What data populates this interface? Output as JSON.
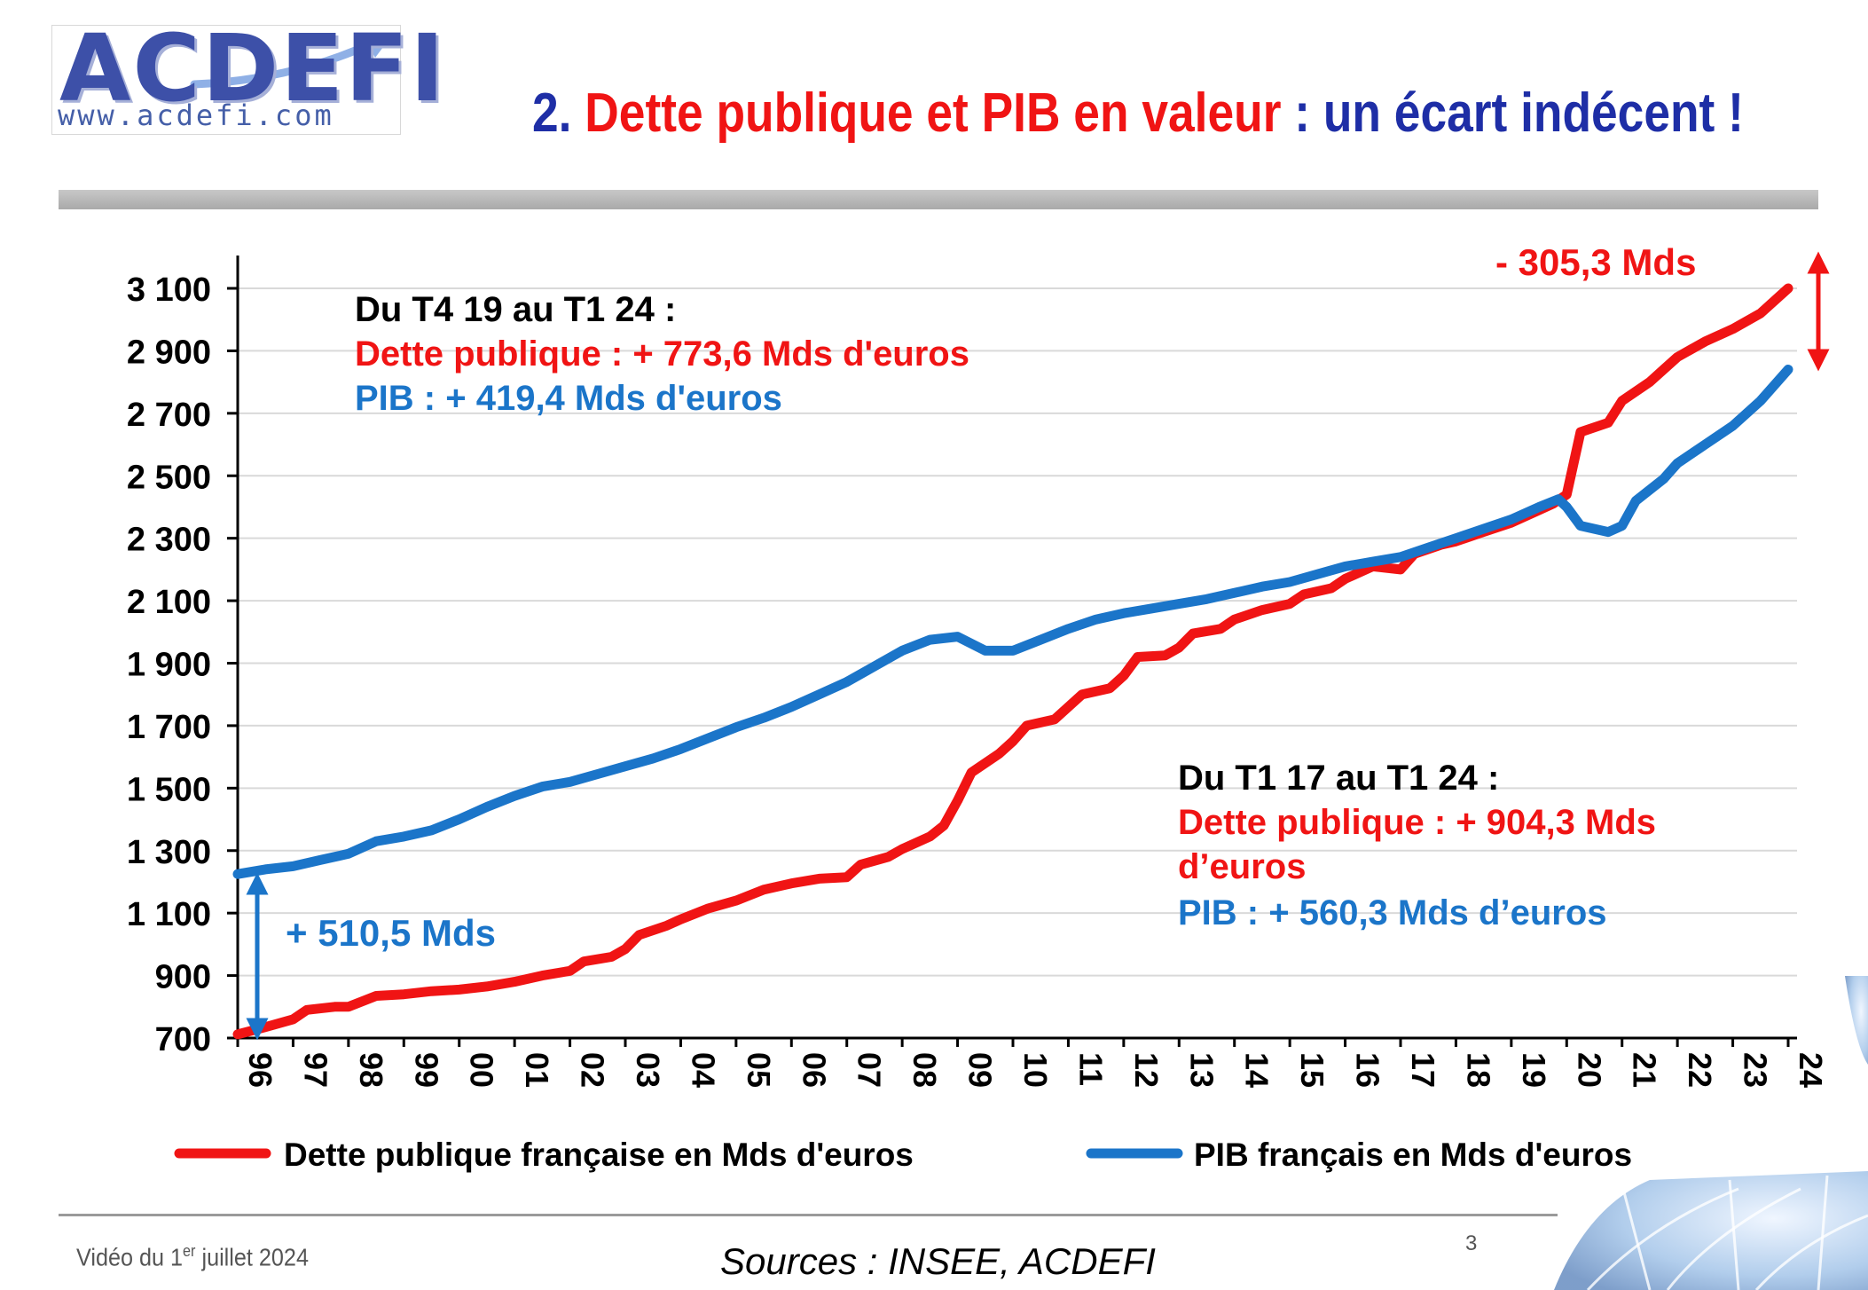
{
  "logo": {
    "name": "ACDEFI",
    "url": "www.acdefi.com"
  },
  "title": {
    "num": "2.",
    "part1": "Dette publique et PIB en valeur",
    "part2": " : un écart indécent !"
  },
  "annotations": {
    "a1": {
      "head": "Du T4 19 au T1 24 :",
      "debt": "Dette publique : + 773,6 Mds d'euros",
      "gdp": "PIB  : + 419,4 Mds d'euros"
    },
    "a2": {
      "head": "Du T1 17 au T1 24 :",
      "debt1": "Dette publique : + 904,3 Mds",
      "debt2": "d’euros",
      "gdp": "PIB  : + 560,3 Mds d’euros"
    },
    "gap_start": "+ 510,5 Mds",
    "gap_end": "- 305,3 Mds"
  },
  "footer": {
    "date_pre": "Vidéo du 1",
    "date_sup": "er",
    "date_post": " juillet 2024",
    "sources": "Sources : INSEE, ACDEFI",
    "page": "3"
  },
  "colors": {
    "debt": "#f01414",
    "gdp": "#1b75c9",
    "title_blue": "#1e2ea6"
  },
  "chart_data": {
    "type": "line",
    "ylim": [
      700,
      3150
    ],
    "yticks": [
      700,
      900,
      1100,
      1300,
      1500,
      1700,
      1900,
      2100,
      2300,
      2500,
      2700,
      2900,
      3100
    ],
    "ytick_labels": [
      "700",
      "900",
      "1 100",
      "1 300",
      "1 500",
      "1 700",
      "1 900",
      "2 100",
      "2 300",
      "2 500",
      "2 700",
      "2 900",
      "3 100"
    ],
    "xlim": [
      1996,
      2024
    ],
    "xtick_labels": [
      "96",
      "97",
      "98",
      "99",
      "00",
      "01",
      "02",
      "03",
      "04",
      "05",
      "06",
      "07",
      "08",
      "09",
      "10",
      "11",
      "12",
      "13",
      "14",
      "15",
      "16",
      "17",
      "18",
      "19",
      "20",
      "21",
      "22",
      "23",
      "24"
    ],
    "grid": true,
    "legend": "bottom",
    "series": [
      {
        "name": "Dette publique française en Mds d'euros",
        "points": [
          [
            1996,
            712
          ],
          [
            1996.5,
            735
          ],
          [
            1997,
            760
          ],
          [
            1997.25,
            790
          ],
          [
            1997.75,
            800
          ],
          [
            1998,
            800
          ],
          [
            1998.5,
            835
          ],
          [
            1999,
            840
          ],
          [
            1999.5,
            850
          ],
          [
            2000,
            855
          ],
          [
            2000.5,
            865
          ],
          [
            2001,
            880
          ],
          [
            2001.5,
            900
          ],
          [
            2002,
            915
          ],
          [
            2002.25,
            945
          ],
          [
            2002.75,
            960
          ],
          [
            2003,
            985
          ],
          [
            2003.25,
            1030
          ],
          [
            2003.75,
            1060
          ],
          [
            2004,
            1080
          ],
          [
            2004.5,
            1115
          ],
          [
            2005,
            1140
          ],
          [
            2005.5,
            1175
          ],
          [
            2006,
            1195
          ],
          [
            2006.5,
            1210
          ],
          [
            2007,
            1215
          ],
          [
            2007.25,
            1255
          ],
          [
            2007.75,
            1280
          ],
          [
            2008,
            1305
          ],
          [
            2008.5,
            1345
          ],
          [
            2008.75,
            1380
          ],
          [
            2009,
            1460
          ],
          [
            2009.25,
            1550
          ],
          [
            2009.75,
            1610
          ],
          [
            2010,
            1650
          ],
          [
            2010.25,
            1700
          ],
          [
            2010.75,
            1720
          ],
          [
            2011,
            1760
          ],
          [
            2011.25,
            1800
          ],
          [
            2011.75,
            1820
          ],
          [
            2012,
            1860
          ],
          [
            2012.25,
            1920
          ],
          [
            2012.75,
            1925
          ],
          [
            2013,
            1950
          ],
          [
            2013.25,
            1995
          ],
          [
            2013.75,
            2010
          ],
          [
            2014,
            2040
          ],
          [
            2014.5,
            2070
          ],
          [
            2015,
            2090
          ],
          [
            2015.25,
            2120
          ],
          [
            2015.75,
            2140
          ],
          [
            2016,
            2170
          ],
          [
            2016.5,
            2210
          ],
          [
            2017,
            2200
          ],
          [
            2017.25,
            2250
          ],
          [
            2017.75,
            2280
          ],
          [
            2018,
            2290
          ],
          [
            2018.5,
            2320
          ],
          [
            2019,
            2350
          ],
          [
            2019.5,
            2390
          ],
          [
            2019.75,
            2410
          ],
          [
            2020,
            2440
          ],
          [
            2020.25,
            2640
          ],
          [
            2020.75,
            2670
          ],
          [
            2021,
            2740
          ],
          [
            2021.5,
            2800
          ],
          [
            2021.75,
            2840
          ],
          [
            2022,
            2880
          ],
          [
            2022.5,
            2930
          ],
          [
            2023,
            2970
          ],
          [
            2023.5,
            3020
          ],
          [
            2024,
            3100
          ]
        ]
      },
      {
        "name": "PIB français en Mds d'euros",
        "points": [
          [
            1996,
            1225
          ],
          [
            1996.5,
            1240
          ],
          [
            1997,
            1250
          ],
          [
            1997.5,
            1270
          ],
          [
            1998,
            1290
          ],
          [
            1998.5,
            1330
          ],
          [
            1999,
            1345
          ],
          [
            1999.5,
            1365
          ],
          [
            2000,
            1400
          ],
          [
            2000.5,
            1440
          ],
          [
            2001,
            1475
          ],
          [
            2001.5,
            1505
          ],
          [
            2002,
            1520
          ],
          [
            2002.5,
            1545
          ],
          [
            2003,
            1570
          ],
          [
            2003.5,
            1595
          ],
          [
            2004,
            1625
          ],
          [
            2004.5,
            1660
          ],
          [
            2005,
            1695
          ],
          [
            2005.5,
            1725
          ],
          [
            2006,
            1760
          ],
          [
            2006.5,
            1800
          ],
          [
            2007,
            1840
          ],
          [
            2007.5,
            1890
          ],
          [
            2008,
            1940
          ],
          [
            2008.5,
            1975
          ],
          [
            2009,
            1985
          ],
          [
            2009.5,
            1940
          ],
          [
            2010,
            1940
          ],
          [
            2010.5,
            1975
          ],
          [
            2011,
            2010
          ],
          [
            2011.5,
            2040
          ],
          [
            2012,
            2060
          ],
          [
            2012.5,
            2075
          ],
          [
            2013,
            2090
          ],
          [
            2013.5,
            2105
          ],
          [
            2014,
            2125
          ],
          [
            2014.5,
            2145
          ],
          [
            2015,
            2160
          ],
          [
            2015.5,
            2185
          ],
          [
            2016,
            2210
          ],
          [
            2016.5,
            2225
          ],
          [
            2017,
            2240
          ],
          [
            2017.5,
            2270
          ],
          [
            2018,
            2300
          ],
          [
            2018.5,
            2330
          ],
          [
            2019,
            2360
          ],
          [
            2019.5,
            2400
          ],
          [
            2019.85,
            2425
          ],
          [
            2020,
            2400
          ],
          [
            2020.25,
            2340
          ],
          [
            2020.75,
            2320
          ],
          [
            2021,
            2340
          ],
          [
            2021.25,
            2420
          ],
          [
            2021.75,
            2490
          ],
          [
            2022,
            2540
          ],
          [
            2022.5,
            2600
          ],
          [
            2023,
            2660
          ],
          [
            2023.5,
            2740
          ],
          [
            2024,
            2840
          ]
        ]
      }
    ]
  }
}
